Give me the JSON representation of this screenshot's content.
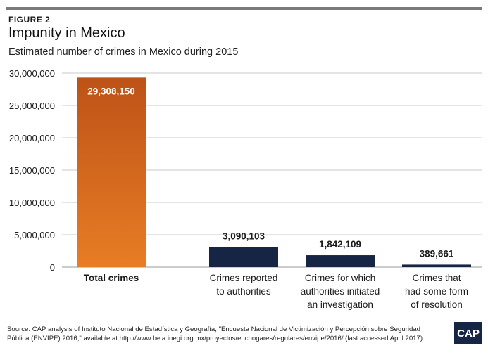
{
  "header": {
    "figure_label": "FIGURE 2",
    "title": "Impunity in Mexico",
    "subtitle": "Estimated number of crimes in Mexico during 2015"
  },
  "chart_data": {
    "type": "bar",
    "title": "Impunity in Mexico",
    "subtitle": "Estimated number of crimes in Mexico during 2015",
    "xlabel": "",
    "ylabel": "",
    "ylim": [
      0,
      30000000
    ],
    "yticks": [
      "0",
      "5,000,000",
      "10,000,000",
      "15,000,000",
      "20,000,000",
      "25,000,000",
      "30,000,000"
    ],
    "grid": true,
    "categories": [
      [
        "Total crimes"
      ],
      [
        "Crimes reported",
        "to authorities"
      ],
      [
        "Crimes for which",
        "authorities initiated",
        "an investigation"
      ],
      [
        "Crimes that",
        "had some form",
        "of resolution"
      ]
    ],
    "values": [
      29308150,
      3090103,
      1842109,
      389661
    ],
    "value_labels": [
      "29,308,150",
      "3,090,103",
      "1,842,109",
      "389,661"
    ],
    "colors": [
      "#d4631a",
      "#172544",
      "#172544",
      "#172544"
    ],
    "gradient_top": "#bd5218",
    "gradient_bottom": "#e87d24"
  },
  "footer": {
    "source": "Source: CAP analysis of Instituto Nacional de Estadística y Geografía, \"Encuesta Nacional de Victimización y Percepción sobre Seguridad Pública (ENVIPE) 2016,\" available at http://www.beta.inegi.org.mx/proyectos/enchogares/regulares/envipe/2016/ (last accessed April 2017).",
    "logo_text": "CAP"
  }
}
